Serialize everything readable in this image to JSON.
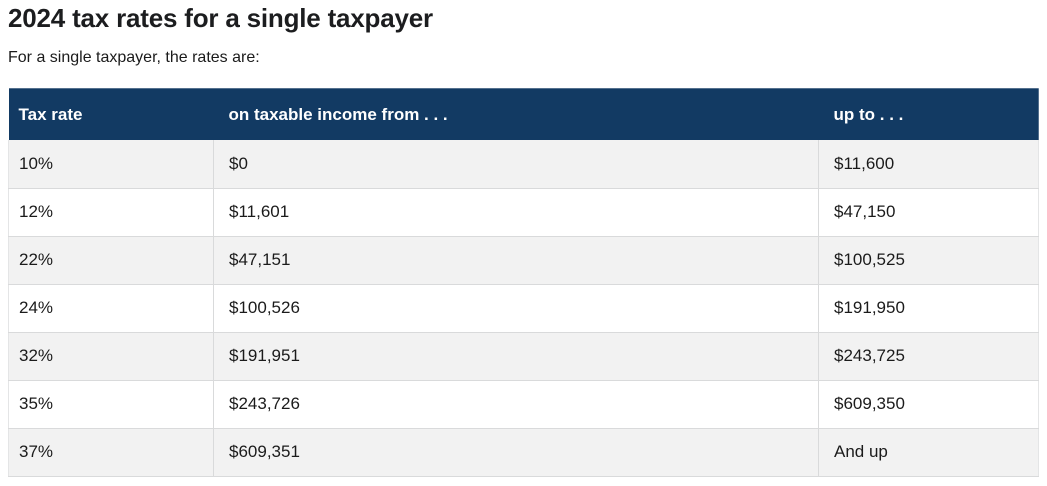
{
  "page": {
    "title": "2024 tax rates for a single taxpayer",
    "subtitle": "For a single taxpayer, the rates are:"
  },
  "table": {
    "columns": [
      "Tax rate",
      "on taxable income from . . .",
      "up to . . ."
    ],
    "rows": [
      [
        "10%",
        "$0",
        "$11,600"
      ],
      [
        "12%",
        "$11,601",
        "$47,150"
      ],
      [
        "22%",
        "$47,151",
        "$100,525"
      ],
      [
        "24%",
        "$100,526",
        "$191,950"
      ],
      [
        "32%",
        "$191,951",
        "$243,725"
      ],
      [
        "35%",
        "$243,726",
        "$609,350"
      ],
      [
        "37%",
        "$609,351",
        "And up"
      ]
    ]
  },
  "colors": {
    "header_bg": "#123a63",
    "header_text": "#ffffff",
    "row_alt_bg": "#f2f2f2",
    "row_bg": "#ffffff",
    "border": "#d9dadb",
    "text": "#1b1b1b"
  }
}
